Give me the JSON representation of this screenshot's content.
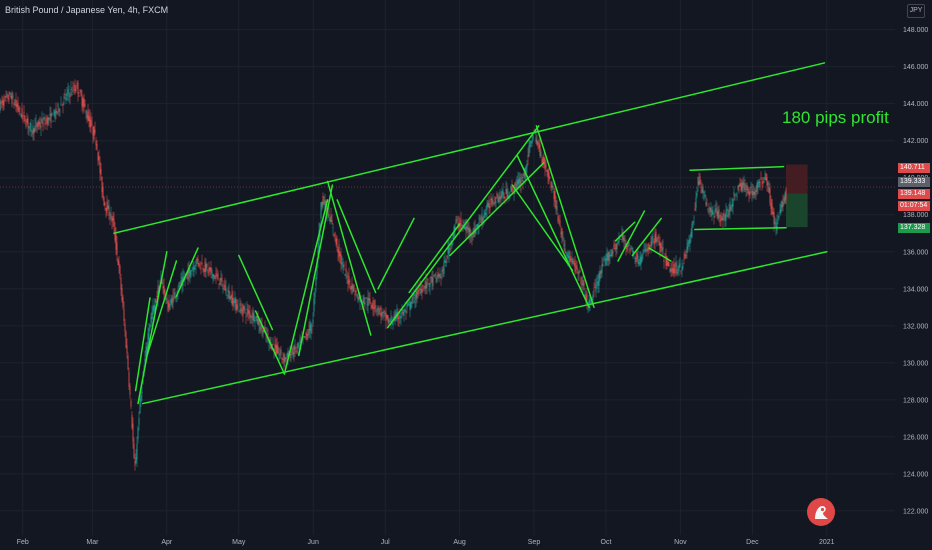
{
  "header": {
    "symbol_title": "British Pound / Japanese Yen, 4h, FXCM",
    "currency_button": "JPY"
  },
  "annotation": {
    "profit_text": "180 pips profit"
  },
  "price_tags": [
    {
      "text": "140.711",
      "price": 140.5,
      "color": "#e04a4a"
    },
    {
      "text": "139.333",
      "price": 139.75,
      "color": "#5d606b"
    },
    {
      "text": "139.148",
      "price": 139.1,
      "color": "#e04a4a"
    },
    {
      "text": "01:07:54",
      "price": 138.45,
      "color": "#e04a4a"
    },
    {
      "text": "137.328",
      "price": 137.3,
      "color": "#1e9a4e"
    }
  ],
  "colors": {
    "background": "#131722",
    "pattern_lines": "#2ee62e",
    "candle_up": "#26a69a",
    "candle_down": "#ef5350",
    "stop_zone": "#4a1e22",
    "target_zone": "#1c4a2e"
  },
  "chart_data": {
    "type": "candlestick",
    "title": "British Pound / Japanese Yen, 4h, FXCM",
    "xlabel": "",
    "ylabel": "",
    "ylim": [
      120.7,
      149.6
    ],
    "yticks": [
      "148.000",
      "146.000",
      "144.000",
      "142.000",
      "140.000",
      "138.000",
      "136.000",
      "134.000",
      "132.000",
      "130.000",
      "128.000",
      "126.000",
      "124.000",
      "122.000"
    ],
    "xticks": [
      "Feb",
      "Mar",
      "Apr",
      "May",
      "Jun",
      "Jul",
      "Aug",
      "Sep",
      "Oct",
      "Nov",
      "Dec",
      "2021"
    ],
    "price_path": [
      [
        "2020-01-20",
        143.6
      ],
      [
        "2020-01-27",
        144.4
      ],
      [
        "2020-02-05",
        142.6
      ],
      [
        "2020-02-14",
        143.3
      ],
      [
        "2020-02-20",
        144.5
      ],
      [
        "2020-02-24",
        144.9
      ],
      [
        "2020-03-03",
        142.0
      ],
      [
        "2020-03-06",
        138.8
      ],
      [
        "2020-03-10",
        137.6
      ],
      [
        "2020-03-13",
        134.5
      ],
      [
        "2020-03-16",
        130.2
      ],
      [
        "2020-03-18",
        126.5
      ],
      [
        "2020-03-19",
        124.0
      ],
      [
        "2020-03-21",
        127.5
      ],
      [
        "2020-03-25",
        132.0
      ],
      [
        "2020-03-30",
        134.5
      ],
      [
        "2020-04-02",
        133.0
      ],
      [
        "2020-04-06",
        134.0
      ],
      [
        "2020-04-14",
        135.5
      ],
      [
        "2020-04-23",
        134.5
      ],
      [
        "2020-05-01",
        133.0
      ],
      [
        "2020-05-08",
        132.5
      ],
      [
        "2020-05-15",
        131.0
      ],
      [
        "2020-05-20",
        130.2
      ],
      [
        "2020-05-26",
        130.8
      ],
      [
        "2020-06-01",
        132.0
      ],
      [
        "2020-06-05",
        139.0
      ],
      [
        "2020-06-09",
        137.5
      ],
      [
        "2020-06-14",
        135.0
      ],
      [
        "2020-06-20",
        133.5
      ],
      [
        "2020-06-26",
        133.2
      ],
      [
        "2020-07-03",
        132.2
      ],
      [
        "2020-07-10",
        132.8
      ],
      [
        "2020-07-16",
        134.0
      ],
      [
        "2020-07-25",
        134.8
      ],
      [
        "2020-07-31",
        137.6
      ],
      [
        "2020-08-07",
        137.0
      ],
      [
        "2020-08-15",
        138.8
      ],
      [
        "2020-08-22",
        139.2
      ],
      [
        "2020-08-28",
        140.0
      ],
      [
        "2020-09-01",
        142.5
      ],
      [
        "2020-09-05",
        141.0
      ],
      [
        "2020-09-09",
        139.5
      ],
      [
        "2020-09-14",
        136.2
      ],
      [
        "2020-09-21",
        134.5
      ],
      [
        "2020-09-24",
        133.0
      ],
      [
        "2020-10-01",
        135.5
      ],
      [
        "2020-10-08",
        136.8
      ],
      [
        "2020-10-15",
        135.5
      ],
      [
        "2020-10-22",
        136.8
      ],
      [
        "2020-10-28",
        135.0
      ],
      [
        "2020-11-02",
        135.2
      ],
      [
        "2020-11-06",
        137.0
      ],
      [
        "2020-11-09",
        140.0
      ],
      [
        "2020-11-13",
        138.3
      ],
      [
        "2020-11-20",
        137.8
      ],
      [
        "2020-11-26",
        139.6
      ],
      [
        "2020-12-02",
        139.2
      ],
      [
        "2020-12-07",
        140.2
      ],
      [
        "2020-12-11",
        137.2
      ],
      [
        "2020-12-15",
        139.1
      ]
    ],
    "trendlines": [
      [
        [
          "2020-03-10",
          137.0
        ],
        [
          "2020-12-31",
          146.2
        ]
      ],
      [
        [
          "2020-03-22",
          127.8
        ],
        [
          "2021-01-01",
          136.0
        ]
      ],
      [
        [
          "2020-03-19",
          128.5
        ],
        [
          "2020-03-25",
          133.5
        ]
      ],
      [
        [
          "2020-03-20",
          127.8
        ],
        [
          "2020-04-01",
          136.0
        ]
      ],
      [
        [
          "2020-03-24",
          130.5
        ],
        [
          "2020-04-05",
          135.5
        ]
      ],
      [
        [
          "2020-04-05",
          133.6
        ],
        [
          "2020-04-14",
          136.2
        ]
      ],
      [
        [
          "2020-05-01",
          135.8
        ],
        [
          "2020-05-15",
          131.8
        ]
      ],
      [
        [
          "2020-05-08",
          132.8
        ],
        [
          "2020-05-20",
          129.4
        ]
      ],
      [
        [
          "2020-05-20",
          129.4
        ],
        [
          "2020-06-07",
          138.8
        ]
      ],
      [
        [
          "2020-05-26",
          130.4
        ],
        [
          "2020-06-09",
          139.6
        ]
      ],
      [
        [
          "2020-06-07",
          139.8
        ],
        [
          "2020-06-25",
          131.5
        ]
      ],
      [
        [
          "2020-06-11",
          138.8
        ],
        [
          "2020-06-27",
          133.8
        ]
      ],
      [
        [
          "2020-06-28",
          134.0
        ],
        [
          "2020-07-13",
          137.8
        ]
      ],
      [
        [
          "2020-07-02",
          131.9
        ],
        [
          "2020-09-03",
          142.8
        ]
      ],
      [
        [
          "2020-07-11",
          133.8
        ],
        [
          "2020-08-01",
          137.5
        ]
      ],
      [
        [
          "2020-07-28",
          135.8
        ],
        [
          "2020-09-05",
          140.8
        ]
      ],
      [
        [
          "2020-08-23",
          139.6
        ],
        [
          "2020-09-17",
          135.0
        ]
      ],
      [
        [
          "2020-08-25",
          141.2
        ],
        [
          "2020-09-24",
          133.0
        ]
      ],
      [
        [
          "2020-09-02",
          142.8
        ],
        [
          "2020-09-26",
          133.0
        ]
      ],
      [
        [
          "2020-10-05",
          136.6
        ],
        [
          "2020-10-13",
          137.6
        ]
      ],
      [
        [
          "2020-10-06",
          135.5
        ],
        [
          "2020-10-17",
          138.2
        ]
      ],
      [
        [
          "2020-10-12",
          135.8
        ],
        [
          "2020-10-24",
          137.8
        ]
      ],
      [
        [
          "2020-10-19",
          136.2
        ],
        [
          "2020-10-28",
          135.5
        ]
      ],
      [
        [
          "2020-11-05",
          140.4
        ],
        [
          "2020-12-14",
          140.6
        ]
      ],
      [
        [
          "2020-11-07",
          137.2
        ],
        [
          "2020-12-15",
          137.3
        ]
      ]
    ],
    "position": {
      "start": "2020-12-15",
      "end": "2020-12-24",
      "stop": 140.711,
      "entry": 139.148,
      "target": 137.328
    }
  }
}
